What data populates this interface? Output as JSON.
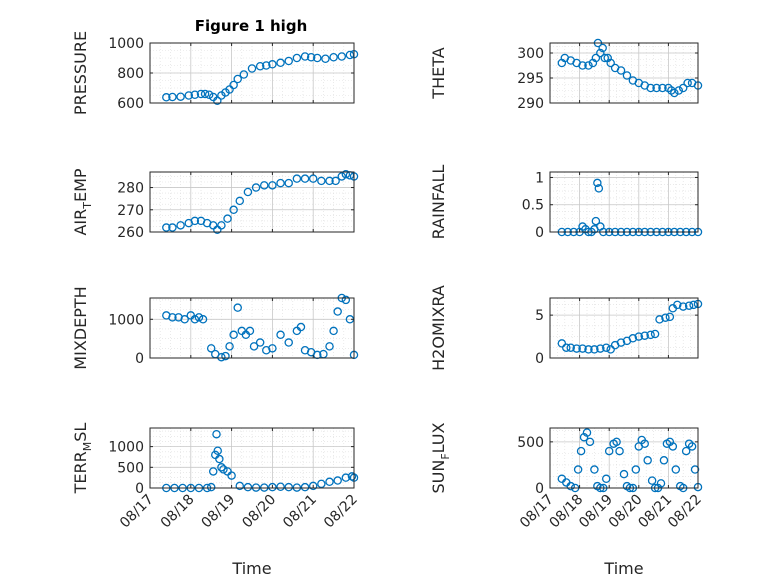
{
  "figure": {
    "title": "Figure 1 high"
  },
  "colors": {
    "marker": "#0072BD",
    "axis": "#262626",
    "grid": "#c8c8c8",
    "background": "#ffffff"
  },
  "x_axis": {
    "label": "Time",
    "ticks": [
      "08/17",
      "08/18",
      "08/19",
      "08/20",
      "08/21",
      "08/22"
    ],
    "tick_values": [
      0,
      1,
      2,
      3,
      4,
      5
    ],
    "range": [
      0,
      5
    ]
  },
  "chart_data": [
    {
      "type": "scatter",
      "ylabel": "PRESSURE",
      "ylabel_parts": null,
      "ylim": [
        600,
        1000
      ],
      "yticks": [
        600,
        800,
        1000
      ],
      "ytick_labels": [
        "600",
        "800",
        "1000"
      ],
      "grid": true,
      "legend": "none",
      "x": [
        0.4,
        0.55,
        0.75,
        0.95,
        1.1,
        1.25,
        1.35,
        1.45,
        1.55,
        1.65,
        1.75,
        1.85,
        1.95,
        2.05,
        2.15,
        2.3,
        2.5,
        2.7,
        2.85,
        3.0,
        3.2,
        3.4,
        3.6,
        3.8,
        3.95,
        4.1,
        4.3,
        4.5,
        4.7,
        4.9,
        5.0
      ],
      "y": [
        638,
        640,
        642,
        650,
        655,
        660,
        660,
        655,
        640,
        615,
        650,
        670,
        690,
        720,
        760,
        790,
        830,
        845,
        850,
        858,
        868,
        880,
        900,
        910,
        905,
        900,
        895,
        905,
        910,
        920,
        925
      ]
    },
    {
      "type": "scatter",
      "ylabel": "THETA",
      "ylabel_parts": null,
      "ylim": [
        290,
        302
      ],
      "yticks": [
        290,
        295,
        300
      ],
      "ytick_labels": [
        "290",
        "295",
        "300"
      ],
      "grid": true,
      "legend": "none",
      "x": [
        0.4,
        0.5,
        0.7,
        0.9,
        1.1,
        1.3,
        1.45,
        1.55,
        1.62,
        1.7,
        1.78,
        1.85,
        1.95,
        2.05,
        2.2,
        2.4,
        2.6,
        2.8,
        3.0,
        3.2,
        3.4,
        3.6,
        3.8,
        4.0,
        4.1,
        4.2,
        4.35,
        4.5,
        4.65,
        4.8,
        5.0
      ],
      "y": [
        298,
        299,
        298.5,
        298,
        297.5,
        297.5,
        298,
        299,
        302,
        300,
        301,
        299,
        299,
        298,
        297,
        296.5,
        295.5,
        294.5,
        294,
        293.5,
        293,
        293,
        293,
        293,
        292.5,
        292,
        292.5,
        293,
        294,
        294,
        293.5
      ]
    },
    {
      "type": "scatter",
      "ylabel": "AIR_TEMP",
      "ylabel_parts": [
        "AIR",
        "T",
        "EMP"
      ],
      "ylim": [
        260,
        287
      ],
      "yticks": [
        260,
        270,
        280
      ],
      "ytick_labels": [
        "260",
        "270",
        "280"
      ],
      "grid": true,
      "legend": "none",
      "x": [
        0.4,
        0.55,
        0.75,
        0.95,
        1.1,
        1.25,
        1.4,
        1.55,
        1.65,
        1.75,
        1.9,
        2.05,
        2.2,
        2.4,
        2.6,
        2.8,
        3.0,
        3.2,
        3.4,
        3.6,
        3.8,
        4.0,
        4.2,
        4.4,
        4.55,
        4.7,
        4.8,
        4.9,
        5.0
      ],
      "y": [
        262,
        262,
        263,
        264,
        265,
        265,
        264,
        263,
        261,
        263,
        266,
        270,
        274,
        278,
        280,
        281,
        281,
        282,
        282,
        284,
        284,
        284,
        283,
        283,
        283,
        285,
        286,
        285.5,
        285
      ]
    },
    {
      "type": "scatter",
      "ylabel": "RAINFALL",
      "ylabel_parts": null,
      "ylim": [
        0,
        1.1
      ],
      "yticks": [
        0,
        0.5,
        1
      ],
      "ytick_labels": [
        "0",
        "0.5",
        "1"
      ],
      "grid": true,
      "legend": "none",
      "x": [
        0.4,
        0.6,
        0.8,
        1.0,
        1.1,
        1.2,
        1.3,
        1.4,
        1.5,
        1.55,
        1.6,
        1.65,
        1.7,
        1.8,
        2.0,
        2.2,
        2.4,
        2.6,
        2.8,
        3.0,
        3.2,
        3.4,
        3.6,
        3.8,
        4.0,
        4.2,
        4.4,
        4.6,
        4.8,
        5.0
      ],
      "y": [
        0,
        0,
        0,
        0,
        0.1,
        0.05,
        0,
        0,
        0.05,
        0.2,
        0.9,
        0.8,
        0.1,
        0,
        0,
        0,
        0,
        0,
        0,
        0,
        0,
        0,
        0,
        0,
        0,
        0,
        0,
        0,
        0,
        0
      ]
    },
    {
      "type": "scatter",
      "ylabel": "MIXDEPTH",
      "ylabel_parts": null,
      "ylim": [
        0,
        1550
      ],
      "yticks": [
        0,
        1000
      ],
      "ytick_labels": [
        "0",
        "1000"
      ],
      "grid": true,
      "legend": "none",
      "x": [
        0.4,
        0.55,
        0.7,
        0.85,
        1.0,
        1.1,
        1.2,
        1.3,
        1.5,
        1.6,
        1.75,
        1.85,
        1.95,
        2.05,
        2.15,
        2.25,
        2.35,
        2.45,
        2.55,
        2.7,
        2.85,
        3.0,
        3.2,
        3.4,
        3.6,
        3.7,
        3.8,
        3.95,
        4.1,
        4.25,
        4.4,
        4.5,
        4.6,
        4.7,
        4.8,
        4.9,
        5.0
      ],
      "y": [
        1100,
        1050,
        1050,
        1000,
        1100,
        1000,
        1050,
        1000,
        250,
        100,
        20,
        50,
        300,
        600,
        1300,
        700,
        600,
        700,
        300,
        400,
        200,
        250,
        600,
        400,
        700,
        800,
        200,
        150,
        80,
        100,
        300,
        700,
        1200,
        1550,
        1500,
        1000,
        80
      ]
    },
    {
      "type": "scatter",
      "ylabel": "H2OMIXRA",
      "ylabel_parts": null,
      "ylim": [
        0,
        7
      ],
      "yticks": [
        0,
        5
      ],
      "ytick_labels": [
        "0",
        "5"
      ],
      "grid": true,
      "legend": "none",
      "x": [
        0.4,
        0.55,
        0.7,
        0.9,
        1.1,
        1.3,
        1.5,
        1.7,
        1.9,
        2.05,
        2.2,
        2.4,
        2.6,
        2.8,
        3.0,
        3.2,
        3.4,
        3.55,
        3.7,
        3.9,
        4.05,
        4.15,
        4.3,
        4.5,
        4.7,
        4.85,
        5.0
      ],
      "y": [
        1.7,
        1.2,
        1.2,
        1.1,
        1.1,
        1.0,
        1.0,
        1.1,
        1.2,
        1.0,
        1.5,
        1.8,
        2.0,
        2.3,
        2.5,
        2.6,
        2.7,
        2.8,
        4.5,
        4.7,
        4.8,
        5.8,
        6.2,
        6.0,
        6.1,
        6.2,
        6.3
      ]
    },
    {
      "type": "scatter",
      "ylabel": "TERR_MSL",
      "ylabel_parts": [
        "TERR",
        "M",
        "SL"
      ],
      "ylim": [
        0,
        1450
      ],
      "yticks": [
        0,
        500,
        1000
      ],
      "ytick_labels": [
        "0",
        "500",
        "1000"
      ],
      "grid": true,
      "legend": "none",
      "x": [
        0.4,
        0.6,
        0.8,
        1.0,
        1.2,
        1.4,
        1.5,
        1.55,
        1.6,
        1.63,
        1.66,
        1.7,
        1.75,
        1.8,
        1.9,
        2.0,
        2.2,
        2.4,
        2.6,
        2.8,
        3.0,
        3.2,
        3.4,
        3.6,
        3.8,
        4.0,
        4.2,
        4.4,
        4.6,
        4.8,
        4.95,
        5.0
      ],
      "y": [
        0,
        0,
        0,
        0,
        0,
        0,
        20,
        400,
        800,
        1300,
        900,
        700,
        500,
        450,
        400,
        300,
        50,
        20,
        10,
        10,
        20,
        30,
        20,
        10,
        20,
        50,
        100,
        150,
        180,
        250,
        280,
        250
      ]
    },
    {
      "type": "scatter",
      "ylabel": "SUN_FLUX",
      "ylabel_parts": [
        "SUN",
        "F",
        "LUX"
      ],
      "ylim": [
        0,
        650
      ],
      "yticks": [
        0,
        500
      ],
      "ytick_labels": [
        "0",
        "500"
      ],
      "grid": true,
      "legend": "none",
      "x": [
        0.4,
        0.55,
        0.7,
        0.85,
        0.95,
        1.05,
        1.15,
        1.25,
        1.35,
        1.5,
        1.6,
        1.7,
        1.8,
        1.9,
        2.0,
        2.15,
        2.25,
        2.35,
        2.5,
        2.6,
        2.7,
        2.8,
        2.9,
        3.0,
        3.1,
        3.2,
        3.3,
        3.45,
        3.55,
        3.65,
        3.75,
        3.85,
        3.95,
        4.05,
        4.15,
        4.25,
        4.4,
        4.5,
        4.6,
        4.7,
        4.8,
        4.9,
        5.0
      ],
      "y": [
        100,
        60,
        20,
        0,
        200,
        400,
        550,
        600,
        500,
        200,
        20,
        0,
        0,
        100,
        400,
        480,
        500,
        400,
        150,
        20,
        0,
        0,
        200,
        450,
        520,
        480,
        300,
        80,
        0,
        0,
        50,
        300,
        480,
        500,
        450,
        200,
        20,
        0,
        400,
        480,
        450,
        200,
        10
      ]
    }
  ]
}
